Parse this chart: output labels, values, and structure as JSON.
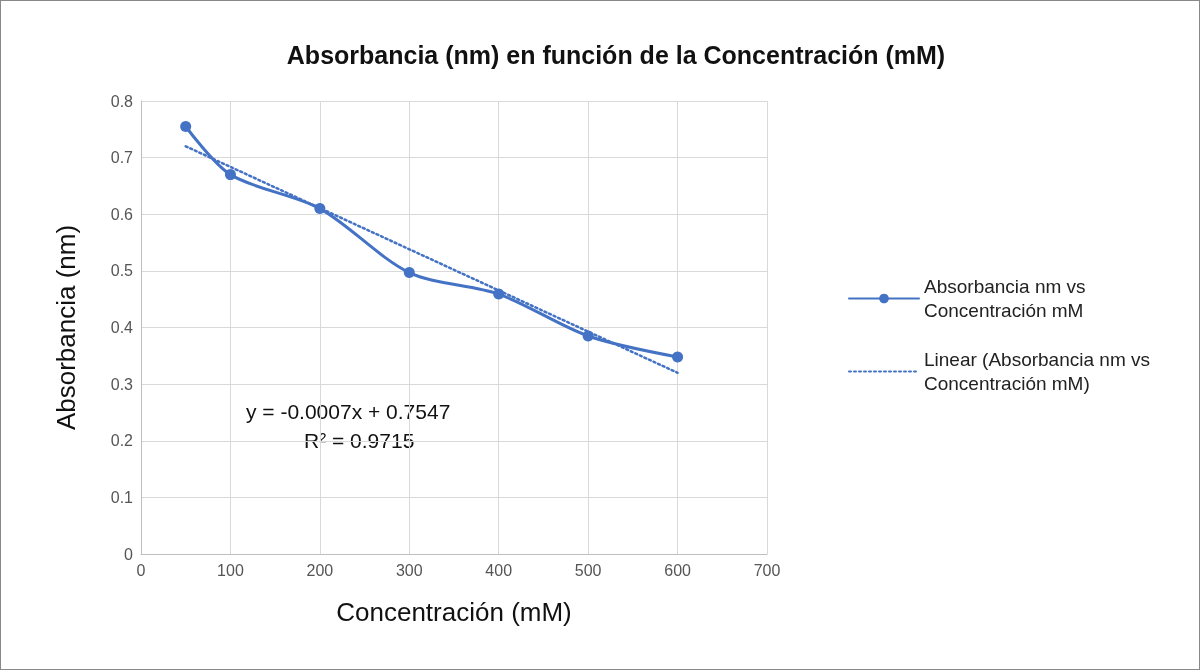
{
  "chart_data": {
    "type": "line",
    "title": "Absorbancia (nm) en función de la Concentración (mM)",
    "xlabel": "Concentración (mM)",
    "ylabel": "Absorbancia (nm)",
    "xlim": [
      0,
      700
    ],
    "xticks": [
      0,
      100,
      200,
      300,
      400,
      500,
      600,
      700
    ],
    "ylim": [
      0,
      0.8
    ],
    "yticks": [
      0,
      0.1,
      0.2,
      0.3,
      0.4,
      0.5,
      0.6,
      0.7,
      0.8
    ],
    "grid": true,
    "legend": "right",
    "annotations": [
      "y = -0.0007x + 0.7547",
      "R² = 0.9715"
    ],
    "series": [
      {
        "name": "Absorbancia nm vs Concentración mM",
        "color": "#4472c4",
        "x": [
          50,
          100,
          200,
          300,
          400,
          500,
          600
        ],
        "values": [
          0.755,
          0.67,
          0.61,
          0.497,
          0.459,
          0.385,
          0.348
        ],
        "marker": "circle",
        "line_style": "solid"
      },
      {
        "name": "Linear (Absorbancia nm vs Concentración mM)",
        "color": "#4472c4",
        "x": [
          50,
          600
        ],
        "values": [
          0.72,
          0.32
        ],
        "marker": "none",
        "line_style": "dotted"
      }
    ]
  }
}
